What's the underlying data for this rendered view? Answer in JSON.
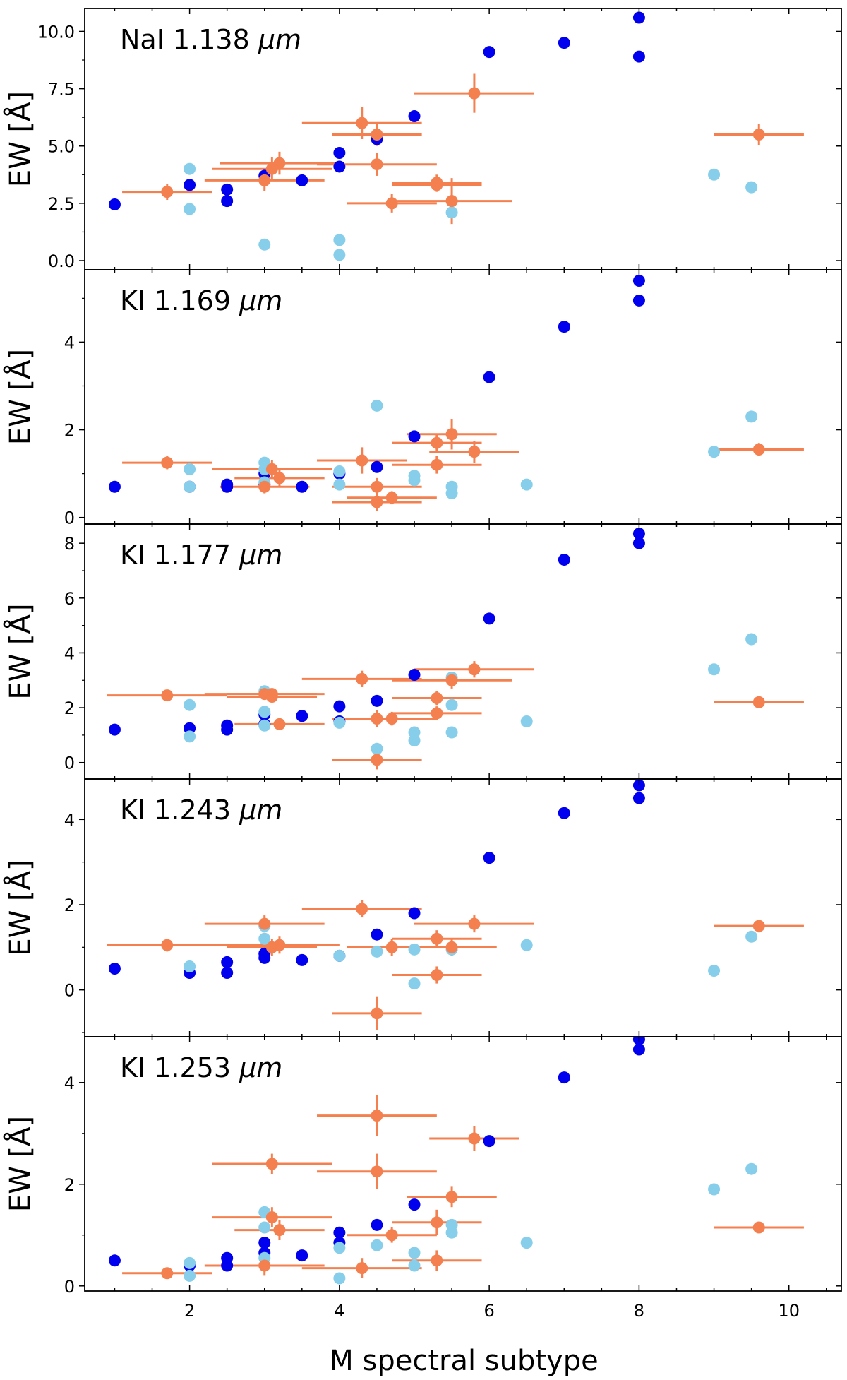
{
  "chart_data": {
    "type": "scatter",
    "figure_xlabel": "M spectral subtype",
    "xlim": [
      0.6,
      10.7
    ],
    "xticks": [
      2,
      4,
      6,
      8,
      10
    ],
    "series_colors": {
      "dark": "#0000ee",
      "light": "#87ceeb",
      "errorbar": "#f5804f"
    },
    "panels": [
      {
        "name": "NaI 1.138 µm",
        "title_line": "NaI 1.138",
        "title_unit": "μm",
        "ylabel": "EW [Å]",
        "ylim": [
          -0.4,
          11.0
        ],
        "yticks": [
          0.0,
          2.5,
          5.0,
          7.5,
          10.0
        ],
        "ytick_labels": [
          "0.0",
          "2.5",
          "5.0",
          "7.5",
          "10.0"
        ],
        "dark": [
          [
            1,
            2.45
          ],
          [
            2,
            3.3
          ],
          [
            2.5,
            3.1
          ],
          [
            2.5,
            2.6
          ],
          [
            3,
            3.7
          ],
          [
            3.5,
            3.5
          ],
          [
            4,
            4.7
          ],
          [
            4,
            4.1
          ],
          [
            4.5,
            5.3
          ],
          [
            5,
            6.3
          ],
          [
            6,
            9.1
          ],
          [
            7,
            9.5
          ],
          [
            8,
            10.6
          ],
          [
            8,
            8.9
          ]
        ],
        "light": [
          [
            2,
            4.0
          ],
          [
            2,
            2.25
          ],
          [
            3,
            0.7
          ],
          [
            4,
            0.9
          ],
          [
            4,
            0.25
          ],
          [
            5.5,
            2.1
          ],
          [
            9,
            3.75
          ],
          [
            9.5,
            3.2
          ]
        ],
        "errorbars": [
          [
            1.7,
            3.0,
            0.6,
            0.35
          ],
          [
            3.0,
            3.5,
            0.8,
            0.45
          ],
          [
            3.1,
            4.0,
            0.8,
            0.5
          ],
          [
            3.2,
            4.25,
            0.8,
            0.5
          ],
          [
            4.3,
            6.0,
            0.8,
            0.7
          ],
          [
            4.5,
            4.2,
            0.8,
            0.5
          ],
          [
            4.5,
            5.5,
            0.6,
            0.5
          ],
          [
            4.7,
            2.5,
            0.6,
            0.4
          ],
          [
            5.3,
            3.4,
            0.6,
            0.35
          ],
          [
            5.3,
            3.3,
            0.6,
            0.3
          ],
          [
            5.5,
            2.6,
            0.8,
            1.0
          ],
          [
            5.8,
            7.3,
            0.8,
            0.85
          ],
          [
            9.6,
            5.5,
            0.6,
            0.45
          ]
        ]
      },
      {
        "name": "KI 1.169 µm",
        "title_line": "KI 1.169",
        "title_unit": "μm",
        "ylabel": "EW [Å]",
        "ylim": [
          -0.15,
          5.65
        ],
        "yticks": [
          0,
          2,
          4
        ],
        "ytick_labels": [
          "0",
          "2",
          "4"
        ],
        "dark": [
          [
            1,
            0.7
          ],
          [
            2,
            0.7
          ],
          [
            2.5,
            0.75
          ],
          [
            2.5,
            0.7
          ],
          [
            3,
            1.0
          ],
          [
            3,
            0.75
          ],
          [
            3.5,
            0.7
          ],
          [
            4,
            1.0
          ],
          [
            4.5,
            1.15
          ],
          [
            5,
            1.85
          ],
          [
            6,
            3.2
          ],
          [
            7,
            4.35
          ],
          [
            8,
            5.4
          ],
          [
            8,
            4.95
          ]
        ],
        "light": [
          [
            2,
            1.1
          ],
          [
            2,
            0.7
          ],
          [
            3,
            1.25
          ],
          [
            3,
            1.1
          ],
          [
            3,
            0.8
          ],
          [
            4,
            1.05
          ],
          [
            4,
            0.75
          ],
          [
            4.5,
            2.55
          ],
          [
            5,
            0.95
          ],
          [
            5,
            0.85
          ],
          [
            5.5,
            0.7
          ],
          [
            5.5,
            0.55
          ],
          [
            6.5,
            0.75
          ],
          [
            9,
            1.5
          ],
          [
            9.5,
            2.3
          ]
        ],
        "errorbars": [
          [
            1.7,
            1.25,
            0.6,
            0.15
          ],
          [
            3.0,
            0.7,
            0.6,
            0.15
          ],
          [
            3.1,
            1.1,
            0.8,
            0.2
          ],
          [
            3.2,
            0.9,
            0.6,
            0.2
          ],
          [
            4.3,
            1.3,
            0.6,
            0.3
          ],
          [
            4.5,
            0.7,
            0.6,
            0.2
          ],
          [
            4.5,
            0.35,
            0.6,
            0.2
          ],
          [
            4.7,
            0.45,
            0.6,
            0.15
          ],
          [
            5.3,
            1.7,
            0.6,
            0.2
          ],
          [
            5.3,
            1.2,
            0.6,
            0.2
          ],
          [
            5.5,
            1.9,
            0.6,
            0.35
          ],
          [
            5.8,
            1.5,
            0.6,
            0.25
          ],
          [
            9.6,
            1.55,
            0.6,
            0.15
          ]
        ]
      },
      {
        "name": "KI 1.177 µm",
        "title_line": "KI 1.177",
        "title_unit": "μm",
        "ylabel": "EW [Å]",
        "ylim": [
          -0.6,
          8.7
        ],
        "yticks": [
          0,
          2,
          4,
          6,
          8
        ],
        "ytick_labels": [
          "0",
          "2",
          "4",
          "6",
          "8"
        ],
        "dark": [
          [
            1,
            1.2
          ],
          [
            2,
            1.25
          ],
          [
            2.5,
            1.35
          ],
          [
            2.5,
            1.2
          ],
          [
            3,
            1.75
          ],
          [
            3,
            1.4
          ],
          [
            3.5,
            1.7
          ],
          [
            4,
            2.05
          ],
          [
            4,
            1.5
          ],
          [
            4.5,
            2.25
          ],
          [
            5,
            3.2
          ],
          [
            6,
            5.25
          ],
          [
            7,
            7.4
          ],
          [
            8,
            8.35
          ],
          [
            8,
            8.0
          ]
        ],
        "light": [
          [
            2,
            2.1
          ],
          [
            2,
            0.95
          ],
          [
            3,
            2.6
          ],
          [
            3,
            1.85
          ],
          [
            3,
            1.35
          ],
          [
            4,
            1.45
          ],
          [
            4.5,
            0.5
          ],
          [
            5,
            1.1
          ],
          [
            5,
            0.8
          ],
          [
            5.5,
            3.1
          ],
          [
            5.5,
            2.1
          ],
          [
            5.5,
            1.1
          ],
          [
            6.5,
            1.5
          ],
          [
            9,
            3.4
          ],
          [
            9.5,
            4.5
          ]
        ],
        "errorbars": [
          [
            1.7,
            2.45,
            0.8,
            0.2
          ],
          [
            3.0,
            2.5,
            0.8,
            0.2
          ],
          [
            3.1,
            2.5,
            0.6,
            0.2
          ],
          [
            3.1,
            2.4,
            0.6,
            0.2
          ],
          [
            3.2,
            1.4,
            0.6,
            0.2
          ],
          [
            4.3,
            3.05,
            0.8,
            0.3
          ],
          [
            4.5,
            1.6,
            0.6,
            0.3
          ],
          [
            4.5,
            0.1,
            0.6,
            0.35
          ],
          [
            4.7,
            1.6,
            0.6,
            0.25
          ],
          [
            5.3,
            2.35,
            0.6,
            0.25
          ],
          [
            5.3,
            1.8,
            0.6,
            0.25
          ],
          [
            5.5,
            3.0,
            0.8,
            0.3
          ],
          [
            5.8,
            3.4,
            0.8,
            0.3
          ],
          [
            9.6,
            2.2,
            0.6,
            0.2
          ]
        ]
      },
      {
        "name": "KI 1.243 µm",
        "title_line": "KI 1.243",
        "title_unit": "μm",
        "ylabel": "EW [Å]",
        "ylim": [
          -1.1,
          4.95
        ],
        "yticks": [
          0,
          2,
          4
        ],
        "ytick_labels": [
          "0",
          "2",
          "4"
        ],
        "dark": [
          [
            1,
            0.5
          ],
          [
            2,
            0.4
          ],
          [
            2.5,
            0.65
          ],
          [
            2.5,
            0.4
          ],
          [
            3,
            0.85
          ],
          [
            3,
            0.75
          ],
          [
            3.5,
            0.7
          ],
          [
            4,
            0.8
          ],
          [
            4.5,
            1.3
          ],
          [
            5,
            1.8
          ],
          [
            6,
            3.1
          ],
          [
            7,
            4.15
          ],
          [
            8,
            4.8
          ],
          [
            8,
            4.5
          ]
        ],
        "light": [
          [
            2,
            0.55
          ],
          [
            3,
            1.5
          ],
          [
            3,
            1.2
          ],
          [
            4,
            0.8
          ],
          [
            4.5,
            0.9
          ],
          [
            5,
            0.95
          ],
          [
            5,
            0.15
          ],
          [
            5.5,
            0.95
          ],
          [
            6.5,
            1.05
          ],
          [
            9,
            0.45
          ],
          [
            9.5,
            1.25
          ]
        ],
        "errorbars": [
          [
            1.7,
            1.05,
            0.8,
            0.15
          ],
          [
            3.0,
            1.55,
            0.8,
            0.2
          ],
          [
            3.1,
            1.0,
            0.6,
            0.2
          ],
          [
            3.2,
            1.05,
            0.8,
            0.2
          ],
          [
            4.3,
            1.9,
            0.8,
            0.2
          ],
          [
            4.5,
            -0.55,
            0.6,
            0.4
          ],
          [
            4.7,
            1.0,
            0.6,
            0.2
          ],
          [
            5.3,
            1.2,
            0.6,
            0.2
          ],
          [
            5.3,
            0.35,
            0.6,
            0.2
          ],
          [
            5.5,
            1.0,
            0.6,
            0.2
          ],
          [
            5.8,
            1.55,
            0.8,
            0.2
          ],
          [
            9.6,
            1.5,
            0.6,
            0.15
          ]
        ]
      },
      {
        "name": "KI 1.253 µm",
        "title_line": "KI 1.253",
        "title_unit": "μm",
        "ylabel": "EW [Å]",
        "ylim": [
          -0.1,
          4.9
        ],
        "yticks": [
          0,
          2,
          4
        ],
        "ytick_labels": [
          "0",
          "2",
          "4"
        ],
        "dark": [
          [
            1,
            0.5
          ],
          [
            2,
            0.4
          ],
          [
            2.5,
            0.55
          ],
          [
            2.5,
            0.4
          ],
          [
            3,
            0.85
          ],
          [
            3,
            0.65
          ],
          [
            3.5,
            0.6
          ],
          [
            4,
            1.05
          ],
          [
            4,
            0.85
          ],
          [
            4.5,
            1.2
          ],
          [
            5,
            1.6
          ],
          [
            6,
            2.85
          ],
          [
            7,
            4.1
          ],
          [
            8,
            4.85
          ],
          [
            8,
            4.65
          ]
        ],
        "light": [
          [
            2,
            0.45
          ],
          [
            2,
            0.2
          ],
          [
            3,
            1.45
          ],
          [
            3,
            1.15
          ],
          [
            3,
            0.55
          ],
          [
            4,
            0.75
          ],
          [
            4,
            0.15
          ],
          [
            4.5,
            0.8
          ],
          [
            5,
            0.65
          ],
          [
            5,
            0.4
          ],
          [
            5.5,
            1.2
          ],
          [
            5.5,
            1.05
          ],
          [
            6.5,
            0.85
          ],
          [
            9,
            1.9
          ],
          [
            9.5,
            2.3
          ]
        ],
        "errorbars": [
          [
            1.7,
            0.25,
            0.6,
            0.1
          ],
          [
            3.0,
            0.4,
            0.8,
            0.2
          ],
          [
            3.1,
            2.4,
            0.8,
            0.2
          ],
          [
            3.1,
            1.35,
            0.8,
            0.2
          ],
          [
            3.2,
            1.1,
            0.6,
            0.2
          ],
          [
            4.3,
            0.35,
            0.8,
            0.2
          ],
          [
            4.5,
            3.35,
            0.8,
            0.4
          ],
          [
            4.5,
            2.25,
            0.8,
            0.35
          ],
          [
            4.7,
            1.0,
            0.6,
            0.15
          ],
          [
            5.3,
            1.25,
            0.6,
            0.25
          ],
          [
            5.3,
            0.5,
            0.6,
            0.2
          ],
          [
            5.5,
            1.75,
            0.6,
            0.2
          ],
          [
            5.8,
            2.9,
            0.6,
            0.25
          ],
          [
            9.6,
            1.15,
            0.6,
            0.1
          ]
        ]
      }
    ]
  }
}
